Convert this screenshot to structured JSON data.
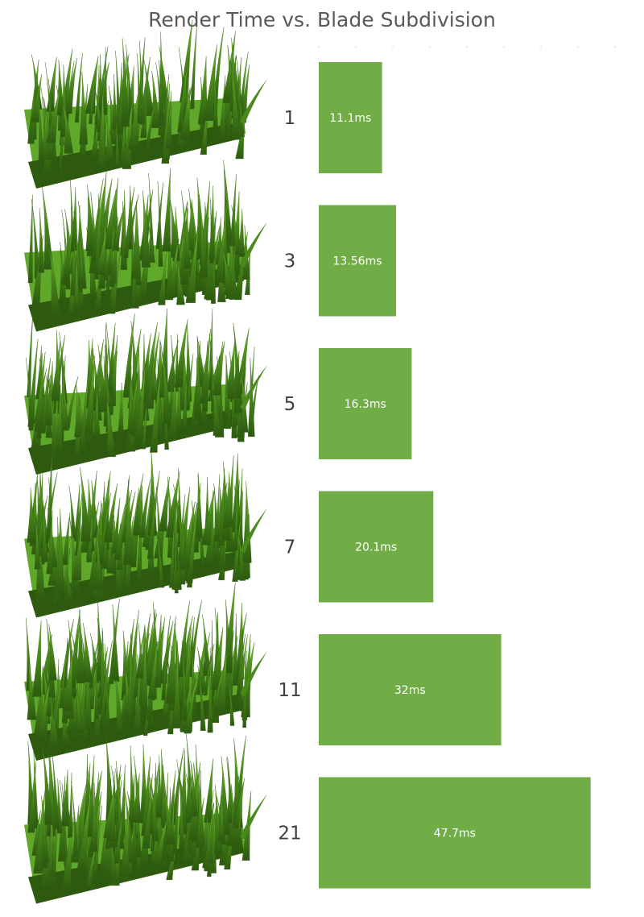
{
  "chart_data": {
    "type": "bar",
    "orientation": "horizontal",
    "title": "Render Time vs. Blade Subdivision",
    "xlabel": "",
    "ylabel": "",
    "categories": [
      "1",
      "3",
      "5",
      "7",
      "11",
      "21"
    ],
    "values": [
      11.1,
      13.56,
      16.3,
      20.1,
      32,
      47.7
    ],
    "value_labels": [
      "11.1ms",
      "13.56ms",
      "16.3ms",
      "20.1ms",
      "32ms",
      "47.7ms"
    ],
    "unit": "ms",
    "xlim": [
      0,
      52
    ],
    "grid": false,
    "legend": "none",
    "bar_color": "#70ad47",
    "grass_colors": {
      "dark": "#2d5a0f",
      "mid": "#4a8a1c",
      "light": "#7bbd32",
      "ground": "#5fa82a"
    }
  }
}
